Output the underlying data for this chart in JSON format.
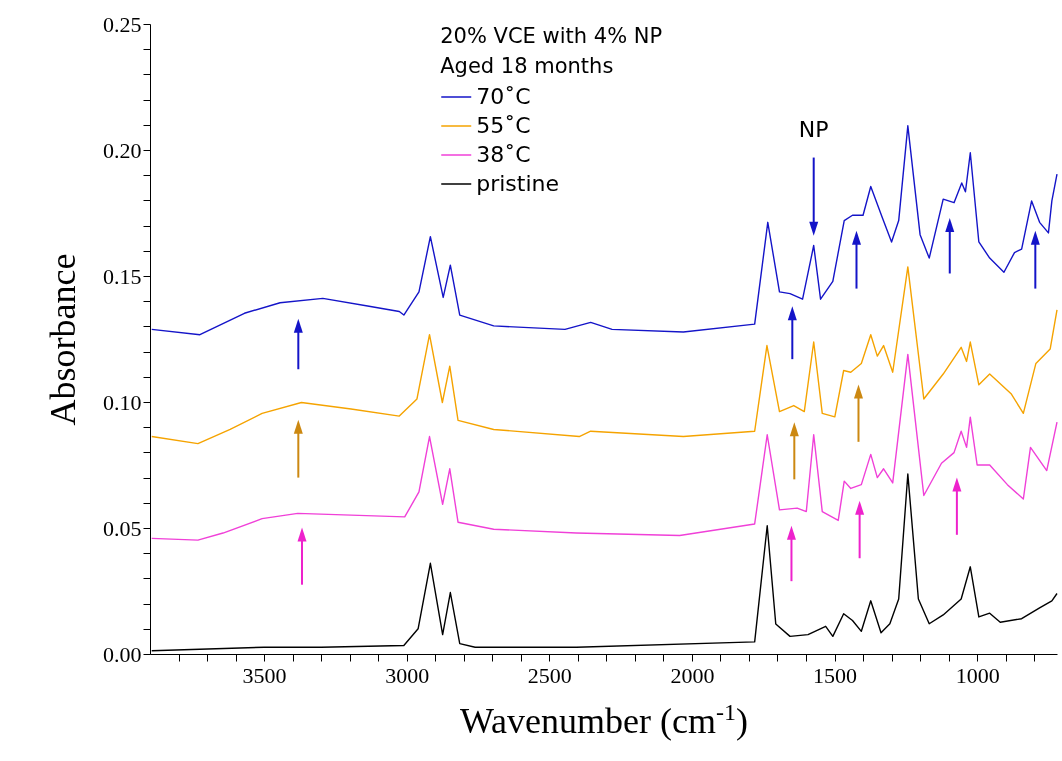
{
  "chart_data": {
    "type": "line",
    "xlabel": "Wavenumber (cm$^{-1}$)",
    "ylabel": "Absorbance",
    "legend_title": "20% VCE with 4% NP\nAged 18 months",
    "legend": "top",
    "xlim": [
      3900,
      720
    ],
    "ylim": [
      0,
      0.25
    ],
    "xticks": [
      {
        "value": 3800,
        "label": null
      },
      {
        "value": 3700,
        "label": null
      },
      {
        "value": 3600,
        "label": null
      },
      3500,
      {
        "value": 3400,
        "label": null
      },
      {
        "value": 3300,
        "label": null
      },
      {
        "value": 3200,
        "label": null
      },
      {
        "value": 3100,
        "label": null
      },
      3000,
      {
        "value": 2900,
        "label": null
      },
      {
        "value": 2800,
        "label": null
      },
      {
        "value": 2700,
        "label": null
      },
      {
        "value": 2600,
        "label": null
      },
      2500,
      {
        "value": 2400,
        "label": null
      },
      {
        "value": 2300,
        "label": null
      },
      {
        "value": 2200,
        "label": null
      },
      {
        "value": 2100,
        "label": null
      },
      2000,
      {
        "value": 1900,
        "label": null
      },
      {
        "value": 1800,
        "label": null
      },
      {
        "value": 1700,
        "label": null
      },
      {
        "value": 1600,
        "label": null
      },
      1500,
      {
        "value": 1400,
        "label": null
      },
      {
        "value": 1300,
        "label": null
      },
      {
        "value": 1200,
        "label": null
      },
      {
        "value": 1100,
        "label": null
      },
      1000,
      {
        "value": 900,
        "label": null
      },
      {
        "value": 800,
        "label": null
      }
    ],
    "yticks": [
      {
        "value": 0,
        "label": "0.00"
      },
      {
        "value": 0.01,
        "label": null
      },
      {
        "value": 0.02,
        "label": null
      },
      {
        "value": 0.03,
        "label": null
      },
      {
        "value": 0.04,
        "label": null
      },
      {
        "value": 0.05,
        "label": "0.05"
      },
      {
        "value": 0.06,
        "label": null
      },
      {
        "value": 0.07,
        "label": null
      },
      {
        "value": 0.08,
        "label": null
      },
      {
        "value": 0.09,
        "label": null
      },
      {
        "value": 0.1,
        "label": "0.10"
      },
      {
        "value": 0.11,
        "label": null
      },
      {
        "value": 0.12,
        "label": null
      },
      {
        "value": 0.13,
        "label": null
      },
      {
        "value": 0.14,
        "label": null
      },
      {
        "value": 0.15,
        "label": "0.15"
      },
      {
        "value": 0.16,
        "label": null
      },
      {
        "value": 0.17,
        "label": null
      },
      {
        "value": 0.18,
        "label": null
      },
      {
        "value": 0.19,
        "label": null
      },
      {
        "value": 0.2,
        "label": "0.20"
      },
      {
        "value": 0.21,
        "label": null
      },
      {
        "value": 0.22,
        "label": null
      },
      {
        "value": 0.23,
        "label": null
      },
      {
        "value": 0.24,
        "label": null
      },
      {
        "value": 0.25,
        "label": "0.25"
      }
    ],
    "annotations": [
      "NP"
    ],
    "series": [
      {
        "name": "70˚C",
        "color": "#1414c8",
        "x": [
          3894,
          3725,
          3569,
          3444,
          3294,
          3132,
          3026,
          3010,
          2957,
          2917,
          2872,
          2847,
          2814,
          2695,
          2445,
          2355,
          2280,
          2030,
          1780,
          1734,
          1693,
          1656,
          1612,
          1573,
          1549,
          1506,
          1466,
          1437,
          1400,
          1373,
          1331,
          1300,
          1275,
          1243,
          1200,
          1168,
          1119,
          1081,
          1054,
          1041,
          1024,
          994,
          956,
          906,
          869,
          844,
          809,
          781,
          750,
          738,
          720
        ],
        "values": [
          0.1288,
          0.1267,
          0.1352,
          0.1394,
          0.1411,
          0.138,
          0.1359,
          0.1345,
          0.1437,
          0.1656,
          0.1415,
          0.1543,
          0.1345,
          0.1302,
          0.1288,
          0.1316,
          0.1288,
          0.1278,
          0.1309,
          0.1713,
          0.1437,
          0.143,
          0.1408,
          0.1621,
          0.1408,
          0.1479,
          0.172,
          0.1741,
          0.1741,
          0.1855,
          0.1727,
          0.1635,
          0.172,
          0.2096,
          0.1664,
          0.1571,
          0.1805,
          0.1791,
          0.1869,
          0.1834,
          0.1989,
          0.1635,
          0.1571,
          0.1515,
          0.1593,
          0.1607,
          0.1798,
          0.1713,
          0.1671,
          0.1798,
          0.1904
        ]
      },
      {
        "name": "55˚C",
        "color": "#f5a300",
        "x": [
          3894,
          3732,
          3619,
          3507,
          3369,
          3195,
          3026,
          2964,
          2920,
          2875,
          2849,
          2820,
          2695,
          2395,
          2355,
          2030,
          1780,
          1737,
          1693,
          1643,
          1606,
          1573,
          1543,
          1499,
          1468,
          1443,
          1406,
          1373,
          1350,
          1328,
          1296,
          1243,
          1187,
          1119,
          1056,
          1037,
          1024,
          994,
          956,
          881,
          838,
          794,
          744,
          720
        ],
        "values": [
          0.0863,
          0.0835,
          0.0891,
          0.0955,
          0.0998,
          0.0972,
          0.0944,
          0.1012,
          0.1267,
          0.0998,
          0.1142,
          0.0927,
          0.0891,
          0.0863,
          0.0884,
          0.0863,
          0.0884,
          0.1224,
          0.0962,
          0.0986,
          0.0962,
          0.1238,
          0.0955,
          0.0941,
          0.1125,
          0.1118,
          0.1153,
          0.1267,
          0.1182,
          0.1224,
          0.1118,
          0.1536,
          0.1012,
          0.1111,
          0.1217,
          0.1161,
          0.1238,
          0.1068,
          0.1111,
          0.1033,
          0.0955,
          0.1153,
          0.121,
          0.1366
        ]
      },
      {
        "name": "38˚C",
        "color": "#f040d8",
        "x": [
          3894,
          3732,
          3644,
          3507,
          3382,
          3195,
          3007,
          2957,
          2920,
          2874,
          2849,
          2820,
          2695,
          2405,
          2043,
          1780,
          1736,
          1693,
          1631,
          1599,
          1573,
          1543,
          1487,
          1466,
          1443,
          1406,
          1373,
          1350,
          1328,
          1296,
          1243,
          1187,
          1125,
          1081,
          1056,
          1037,
          1024,
          1000,
          956,
          894,
          838,
          813,
          756,
          720
        ],
        "values": [
          0.0459,
          0.0452,
          0.048,
          0.0537,
          0.0558,
          0.0551,
          0.0544,
          0.0643,
          0.0863,
          0.0594,
          0.0735,
          0.0523,
          0.0495,
          0.048,
          0.047,
          0.0516,
          0.087,
          0.0572,
          0.0579,
          0.0565,
          0.087,
          0.0565,
          0.053,
          0.0686,
          0.0657,
          0.0672,
          0.0792,
          0.07,
          0.0735,
          0.0679,
          0.1189,
          0.0629,
          0.0757,
          0.0799,
          0.0884,
          0.082,
          0.094,
          0.075,
          0.075,
          0.0672,
          0.0615,
          0.082,
          0.0728,
          0.092
        ]
      },
      {
        "name": "pristine",
        "color": "#000000",
        "x": [
          3894,
          3500,
          3300,
          3010,
          2960,
          2917,
          2874,
          2847,
          2814,
          2760,
          2405,
          1780,
          1736,
          1706,
          1656,
          1593,
          1531,
          1506,
          1468,
          1437,
          1406,
          1373,
          1337,
          1306,
          1275,
          1243,
          1206,
          1168,
          1119,
          1056,
          1024,
          994,
          956,
          919,
          844,
          781,
          738,
          720
        ],
        "values": [
          0.0013,
          0.0027,
          0.0027,
          0.0034,
          0.01,
          0.036,
          0.0077,
          0.0244,
          0.0041,
          0.0027,
          0.0027,
          0.0048,
          0.0509,
          0.0119,
          0.007,
          0.0077,
          0.011,
          0.007,
          0.016,
          0.0133,
          0.009,
          0.0211,
          0.0084,
          0.012,
          0.0218,
          0.0714,
          0.0218,
          0.012,
          0.0155,
          0.0218,
          0.0346,
          0.0147,
          0.0162,
          0.0126,
          0.014,
          0.0183,
          0.0211,
          0.024
        ]
      }
    ]
  }
}
